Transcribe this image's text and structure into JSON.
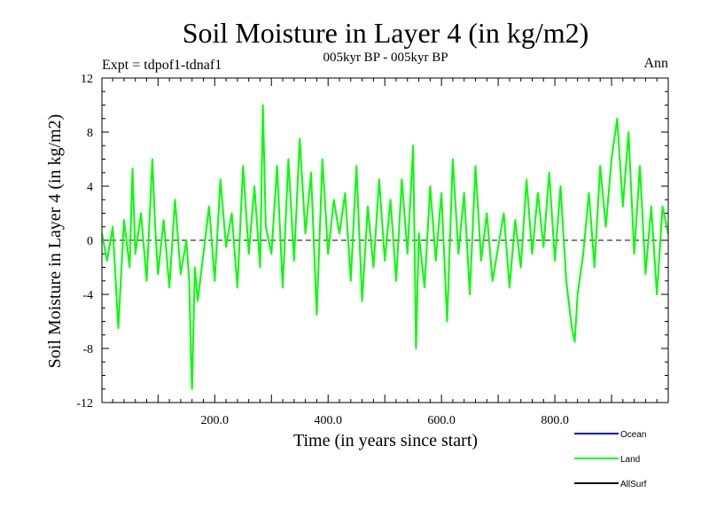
{
  "chart_data": {
    "type": "line",
    "title": "Soil Moisture in Layer 4 (in kg/m2)",
    "subtitle": "005kyr BP - 005kyr BP",
    "experiment_label": "Expt = tdpof1-tdnaf1",
    "season_label": "Ann",
    "xlabel": "Time (in years since start)",
    "ylabel": "Soil Moisture in Layer 4 (in kg/m2)",
    "xlim": [
      1,
      1000
    ],
    "ylim": [
      -12,
      12
    ],
    "x_ticks": [
      200,
      400,
      600,
      800
    ],
    "x_tick_labels": [
      "200.0",
      "400.0",
      "600.0",
      "800.0"
    ],
    "y_ticks": [
      -12,
      -8,
      -4,
      0,
      4,
      8,
      12
    ],
    "y_tick_labels": [
      "-12",
      "-8",
      "-4",
      "0",
      "4",
      "8",
      "12"
    ],
    "zero_line": true,
    "legend": [
      {
        "name": "Ocean",
        "color": "#0000cc"
      },
      {
        "name": "Land",
        "color": "#00ff00"
      },
      {
        "name": "AllSurf",
        "color": "#000000"
      }
    ],
    "series": [
      {
        "name": "Land",
        "color": "#00ff00",
        "x": [
          1,
          10,
          20,
          30,
          40,
          50,
          55,
          60,
          70,
          80,
          90,
          95,
          100,
          110,
          120,
          130,
          140,
          150,
          155,
          158,
          160,
          165,
          170,
          180,
          190,
          200,
          210,
          220,
          230,
          240,
          250,
          260,
          270,
          280,
          285,
          290,
          300,
          310,
          320,
          330,
          340,
          350,
          360,
          370,
          380,
          390,
          400,
          410,
          420,
          430,
          440,
          450,
          460,
          470,
          480,
          490,
          500,
          510,
          520,
          530,
          540,
          550,
          555,
          560,
          570,
          580,
          590,
          600,
          610,
          620,
          630,
          640,
          650,
          660,
          670,
          680,
          690,
          700,
          710,
          720,
          730,
          740,
          750,
          760,
          770,
          780,
          790,
          800,
          810,
          820,
          830,
          835,
          840,
          850,
          860,
          870,
          880,
          890,
          900,
          910,
          920,
          930,
          940,
          950,
          960,
          970,
          980,
          990,
          1000
        ],
        "y": [
          0.5,
          -1.5,
          1.0,
          -6.5,
          1.5,
          -2.0,
          5.3,
          -1.0,
          2.0,
          -3.0,
          6.0,
          1.0,
          -2.5,
          1.5,
          -3.5,
          3.0,
          -2.5,
          0.0,
          -3.0,
          -8.5,
          -11.0,
          -2.0,
          -4.5,
          -1.0,
          2.5,
          -3.0,
          4.5,
          -0.5,
          2.0,
          -3.5,
          5.5,
          -1.0,
          4.0,
          -2.0,
          10.0,
          1.0,
          -1.0,
          5.5,
          -3.5,
          6.0,
          -1.5,
          7.5,
          0.5,
          5.0,
          -5.5,
          6.0,
          -1.0,
          3.0,
          0.5,
          3.5,
          -3.0,
          5.5,
          -4.5,
          2.5,
          -2.0,
          4.5,
          -1.5,
          3.0,
          -3.0,
          4.5,
          -1.0,
          7.0,
          -8.0,
          0.5,
          -3.5,
          4.0,
          -1.5,
          3.5,
          -6.0,
          6.0,
          -1.0,
          3.5,
          -4.0,
          5.5,
          -1.5,
          2.0,
          -3.0,
          -0.5,
          2.0,
          -3.5,
          1.5,
          -2.0,
          4.5,
          -1.0,
          3.5,
          -0.5,
          5.0,
          -1.5,
          4.0,
          -3.0,
          -6.5,
          -7.5,
          -4.0,
          -1.0,
          3.5,
          -2.0,
          5.5,
          1.0,
          6.0,
          9.0,
          2.5,
          8.0,
          -1.0,
          5.5,
          -2.5,
          2.5,
          -4.0,
          2.5,
          0.5
        ]
      }
    ]
  }
}
